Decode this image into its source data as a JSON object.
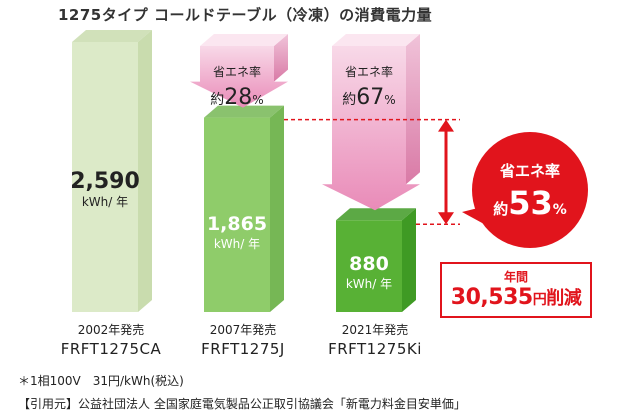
{
  "title": "1275タイプ コールドテーブル（冷凍）の消費電力量",
  "chart_data": {
    "type": "bar",
    "title": "1275タイプ コールドテーブル（冷凍）の消費電力量",
    "categories": [
      {
        "year": "2002年発売",
        "model": "FRFT1275CA"
      },
      {
        "year": "2007年発売",
        "model": "FRFT1275J"
      },
      {
        "year": "2021年発売",
        "model": "FRFT1275Ki"
      }
    ],
    "values": [
      2590,
      1865,
      880
    ],
    "value_labels": [
      "2,590",
      "1,865",
      "880"
    ],
    "unit": "kWh/ 年",
    "ylim": [
      0,
      2590
    ],
    "colors": {
      "bar1_front": "#dceac8",
      "bar1_side": "#c9dcae",
      "bar2_front": "#8fcc6a",
      "bar2_side": "#76b755",
      "bar3_front": "#58b135",
      "bar3_side": "#3f9a24",
      "arrow_top": "#f3a4c8",
      "arrow_bottom": "#f8d7e8",
      "accent_red": "#e1141c"
    },
    "arrows": [
      {
        "label": "省エネ率",
        "prefix": "約",
        "value": "28",
        "suffix": "%"
      },
      {
        "label": "省エネ率",
        "prefix": "約",
        "value": "67",
        "suffix": "%"
      }
    ],
    "highlight": {
      "label": "省エネ率",
      "prefix": "約",
      "value": "53",
      "suffix": "%"
    },
    "annual": {
      "label": "年間",
      "value": "30,535",
      "unit": "円",
      "tail": "削減"
    }
  },
  "notes": [
    "＊1相100V　31円/kWh(税込)",
    "【引用元】公益社団法人 全国家庭電気製品公正取引協議会「新電力料金目安単価」"
  ]
}
